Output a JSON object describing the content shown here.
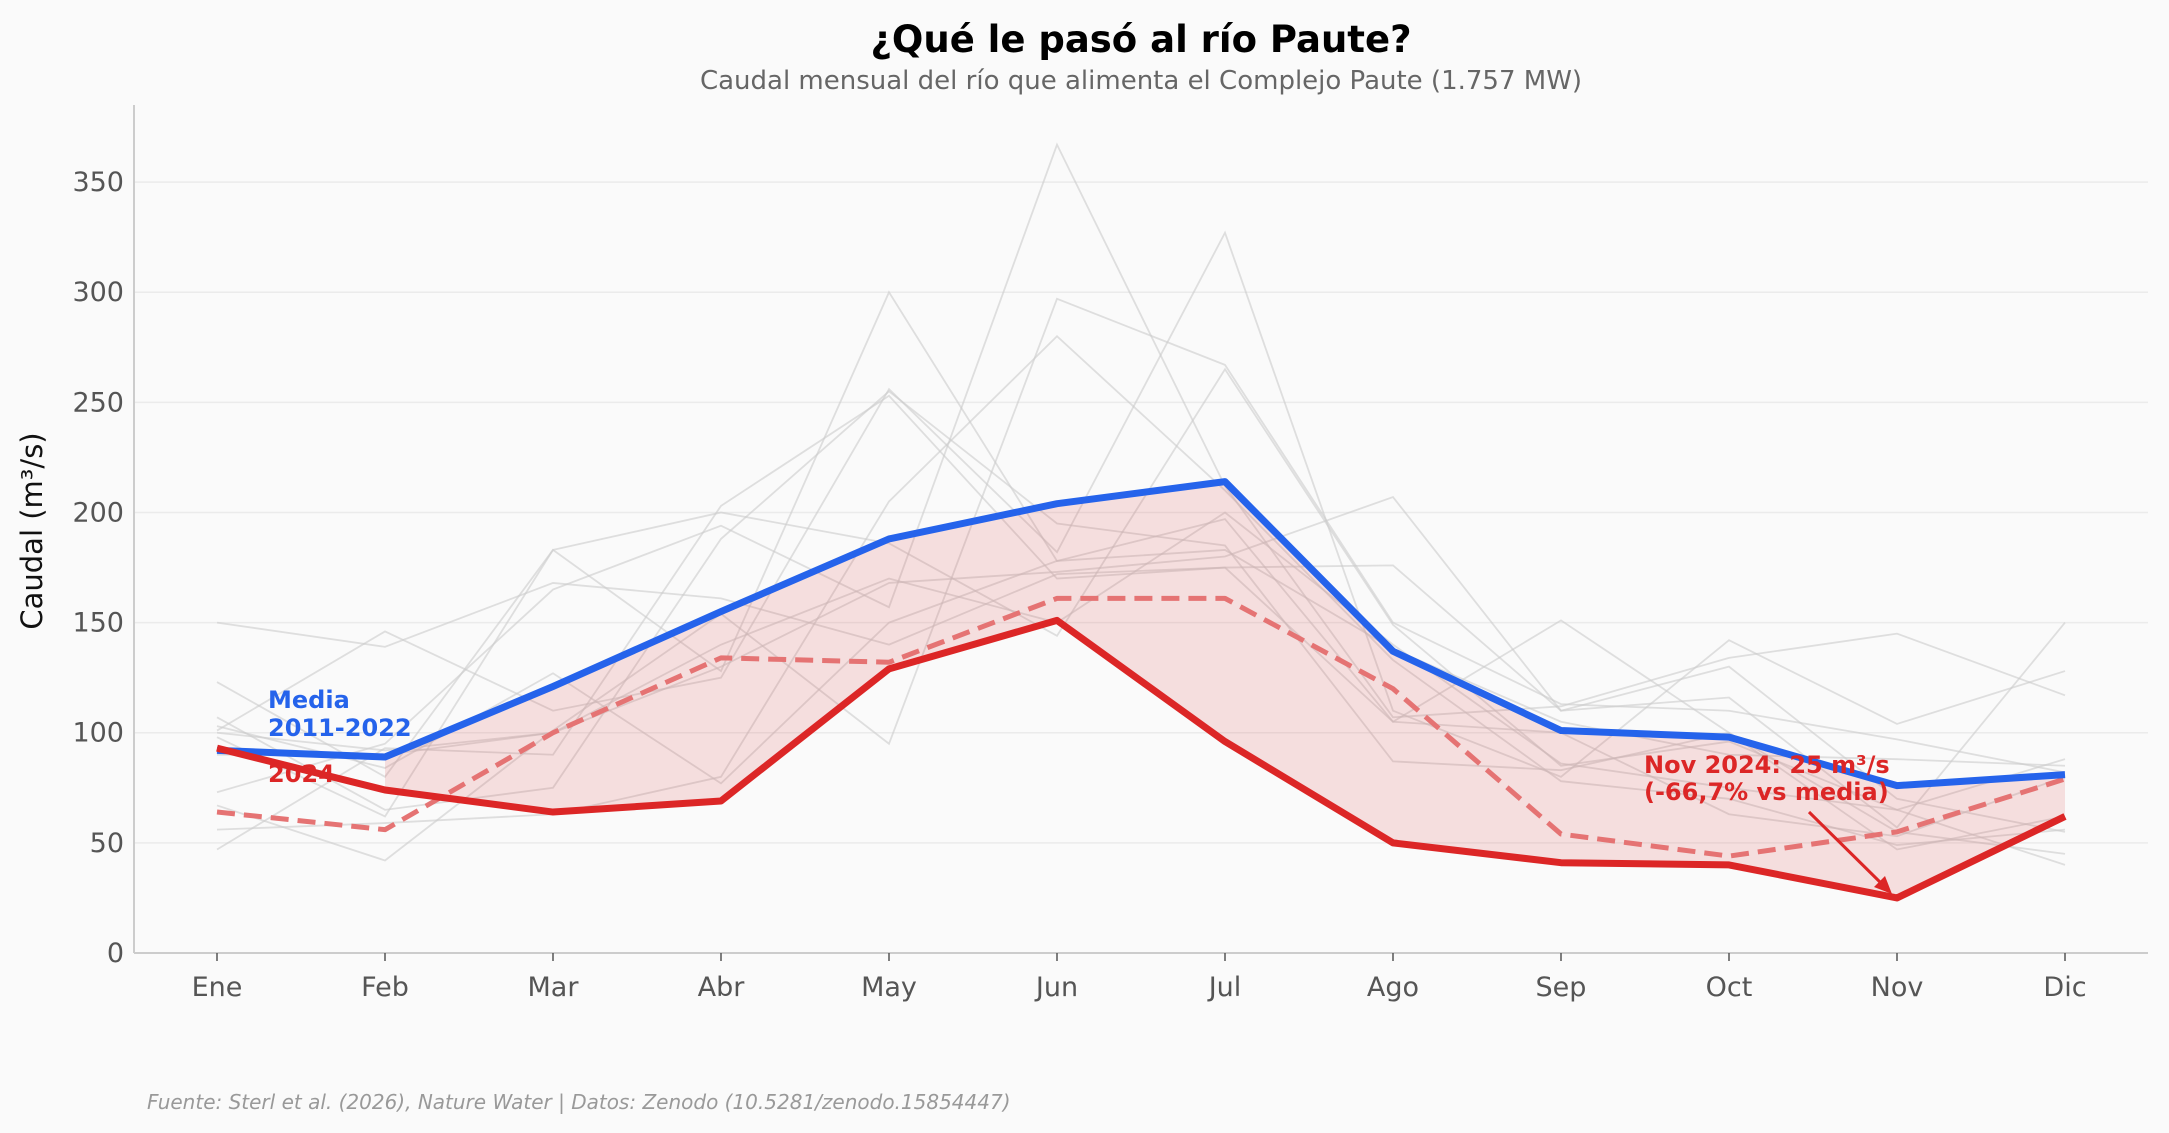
{
  "chart_data": {
    "type": "line",
    "title": "¿Qué le pasó al río Paute?",
    "subtitle": "Caudal mensual del río que alimenta el Complejo Paute (1.757 MW)",
    "xlabel": "",
    "ylabel": "Caudal (m³/s)",
    "ylim": [
      0,
      385
    ],
    "yticks": [
      0,
      50,
      100,
      150,
      200,
      250,
      300,
      350
    ],
    "grid": "horizontal",
    "categories": [
      "Ene",
      "Feb",
      "Mar",
      "Abr",
      "May",
      "Jun",
      "Jul",
      "Ago",
      "Sep",
      "Oct",
      "Nov",
      "Dic"
    ],
    "series": [
      {
        "name": "Media 2011-2022",
        "color": "#2563eb",
        "style": "solid",
        "values": [
          92,
          89,
          121,
          155,
          188,
          204,
          214,
          137,
          101,
          98,
          76,
          81
        ]
      },
      {
        "name": "2024",
        "color": "#dc2626",
        "style": "solid",
        "values": [
          93,
          74,
          64,
          69,
          129,
          151,
          96,
          50,
          41,
          40,
          25,
          62
        ]
      },
      {
        "color": "#e57373",
        "style": "dashed",
        "values": [
          64,
          56,
          100,
          134,
          132,
          161,
          161,
          120,
          54,
          44,
          55,
          79
        ]
      }
    ],
    "background_years": {
      "color": "#cccccc",
      "values": [
        [
          150,
          139,
          168,
          161,
          140,
          172,
          175,
          176,
          110,
          116,
          57,
          150
        ],
        [
          123,
          80,
          183,
          128,
          300,
          178,
          197,
          105,
          151,
          100,
          55,
          45
        ],
        [
          101,
          146,
          110,
          125,
          256,
          182,
          327,
          110,
          80,
          142,
          104,
          128
        ],
        [
          98,
          62,
          183,
          200,
          186,
          144,
          265,
          149,
          85,
          96,
          65,
          40
        ],
        [
          73,
          95,
          165,
          194,
          157,
          367,
          212,
          107,
          112,
          134,
          145,
          117
        ],
        [
          107,
          65,
          75,
          188,
          255,
          195,
          185,
          87,
          83,
          100,
          47,
          62
        ],
        [
          67,
          42,
          101,
          154,
          95,
          297,
          267,
          150,
          113,
          110,
          97,
          82
        ],
        [
          56,
          59,
          63,
          80,
          205,
          280,
          210,
          133,
          78,
          70,
          49,
          56
        ],
        [
          47,
          93,
          90,
          203,
          253,
          170,
          175,
          105,
          100,
          63,
          53,
          80
        ],
        [
          90,
          90,
          100,
          130,
          168,
          173,
          180,
          207,
          110,
          130,
          70,
          55
        ],
        [
          100,
          92,
          100,
          140,
          170,
          150,
          200,
          140,
          86,
          75,
          65,
          88
        ],
        [
          103,
          84,
          127,
          77,
          150,
          178,
          183,
          138,
          105,
          90,
          88,
          85
        ]
      ]
    },
    "fill_between": {
      "from": "Media 2011-2022",
      "to": "2024",
      "color": "#dc2626",
      "start": "Feb"
    },
    "annotations": {
      "media_line1": "Media",
      "media_line2": "2011-2022",
      "year_label": "2024",
      "nov_line1": "Nov 2024: 25 m³/s",
      "nov_line2": "(-66,7% vs media)"
    },
    "footer": "Fuente: Sterl et al. (2026), Nature Water | Datos: Zenodo (10.5281/zenodo.15854447)"
  }
}
